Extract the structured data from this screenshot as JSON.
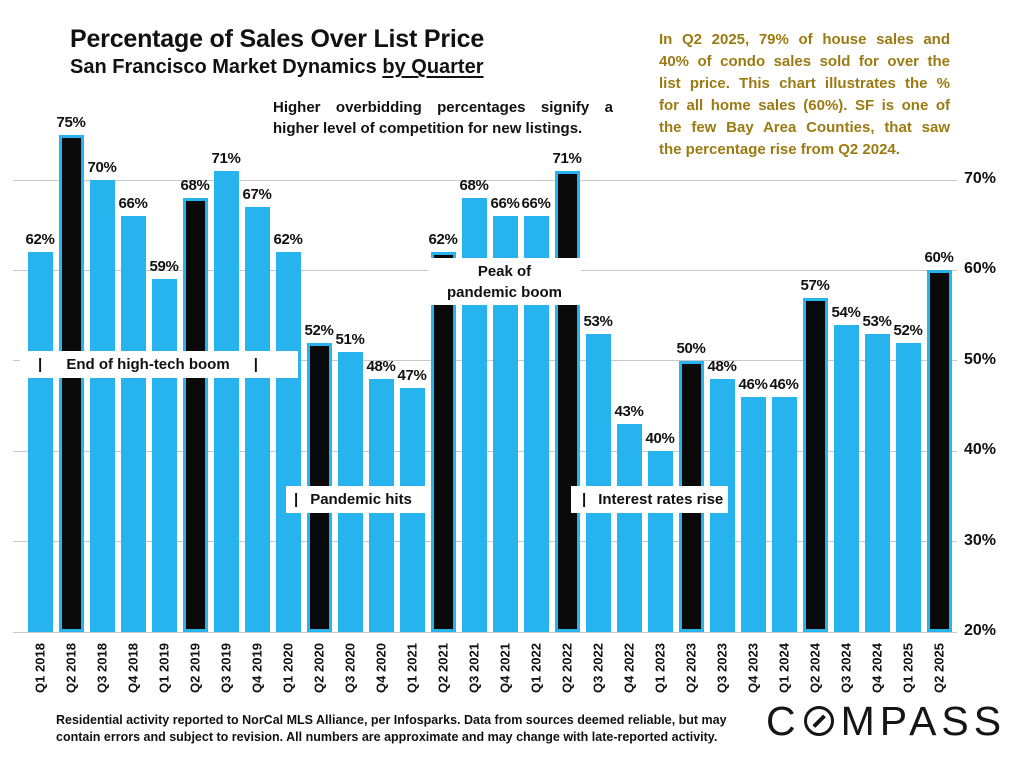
{
  "header": {
    "title": "Percentage of Sales Over List Price",
    "subtitle_main": "San Francisco Market Dynamics ",
    "subtitle_emph": "by Quarter"
  },
  "notes": {
    "competition_line1": "Higher overbidding percentages signify a",
    "competition_line2": "higher level of competition for new listings."
  },
  "callout": {
    "lines": [
      "In Q2 2025, 79% of house sales and",
      "40% of condo sales sold for over the",
      "list price. This chart illustrates the %",
      "for all home sales (60%). SF is one of",
      "the few Bay Area Counties, that saw",
      "the percentage rise from Q2 2024."
    ]
  },
  "annotations": {
    "high_tech": {
      "pipe_left": "|",
      "label": "End of high-tech boom",
      "pipe_right": "|"
    },
    "pandemic_hits": {
      "pipe": "|",
      "label": "Pandemic hits"
    },
    "interest_rates": {
      "pipe": "|",
      "label": "Interest rates rise"
    },
    "peak": {
      "line1": "Peak of",
      "line2": "pandemic boom"
    }
  },
  "footer": {
    "line1": "Residential activity reported to NorCal MLS Alliance, per Infosparks. Data from sources deemed reliable, but may",
    "line2": "contain errors and subject to revision. All numbers are approximate and may change with late-reported activity.",
    "logo_prefix": "C",
    "logo_suffix": "MPASS"
  },
  "colors": {
    "bar_cyan": "#26b3ee",
    "bar_black": "#0a0a0a",
    "callout_gold": "#9c7a12",
    "gridline": "#c8c8c8",
    "text": "#111111"
  },
  "chart_data": {
    "type": "bar",
    "title": "Percentage of Sales Over List Price",
    "subtitle": "San Francisco Market Dynamics by Quarter",
    "unit": "%",
    "categories": [
      "Q1 2018",
      "Q2 2018",
      "Q3 2018",
      "Q4 2018",
      "Q1 2019",
      "Q2 2019",
      "Q3 2019",
      "Q4 2019",
      "Q1 2020",
      "Q2 2020",
      "Q3 2020",
      "Q4 2020",
      "Q1 2021",
      "Q2 2021",
      "Q3 2021",
      "Q4 2021",
      "Q1 2022",
      "Q2 2022",
      "Q3 2022",
      "Q4 2022",
      "Q1 2023",
      "Q2 2023",
      "Q3 2023",
      "Q4 2023",
      "Q1 2024",
      "Q2 2024",
      "Q3 2024",
      "Q4 2024",
      "Q1 2025",
      "Q2 2025"
    ],
    "values": [
      62,
      75,
      70,
      66,
      59,
      68,
      71,
      67,
      62,
      52,
      51,
      48,
      47,
      62,
      68,
      66,
      66,
      71,
      53,
      43,
      40,
      50,
      48,
      46,
      46,
      57,
      54,
      53,
      52,
      60
    ],
    "highlighted_categories": [
      "Q2 2018",
      "Q2 2019",
      "Q2 2020",
      "Q2 2021",
      "Q2 2022",
      "Q2 2023",
      "Q2 2024",
      "Q2 2025"
    ],
    "yticks": [
      70,
      60,
      50,
      40,
      30,
      20
    ],
    "ylim": [
      20,
      77
    ],
    "ylabel_side": "right",
    "grid": "horizontal",
    "legend": "none"
  }
}
